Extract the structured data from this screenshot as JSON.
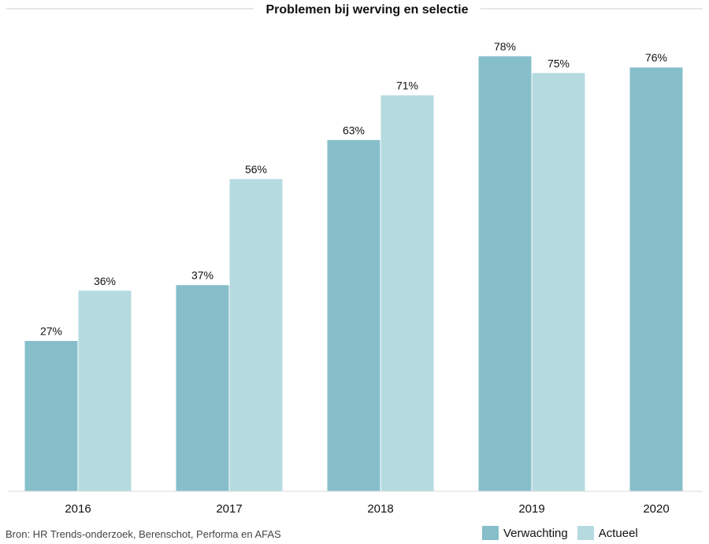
{
  "chart_data": {
    "type": "bar",
    "title": "Problemen bij werving en selectie",
    "categories": [
      "2016",
      "2017",
      "2018",
      "2019",
      "2020"
    ],
    "series": [
      {
        "name": "Verwachting",
        "color": "#86bfca",
        "values": [
          27,
          37,
          63,
          78,
          76
        ]
      },
      {
        "name": "Actueel",
        "color": "#b5dbe1",
        "values": [
          36,
          56,
          71,
          75,
          null
        ]
      }
    ],
    "value_labels": [
      [
        "27%",
        "37%",
        "63%",
        "78%",
        "76%"
      ],
      [
        "36%",
        "56%",
        "71%",
        "75%",
        null
      ]
    ],
    "xlabel": "",
    "ylabel": "",
    "ylim": [
      0,
      100
    ],
    "grid": false,
    "legend_position": "bottom-right"
  },
  "source": "Bron: HR Trends-onderzoek, Berenschot, Performa en AFAS"
}
